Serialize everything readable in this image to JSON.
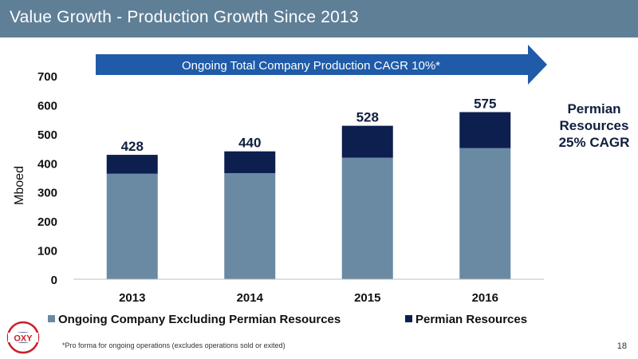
{
  "header": {
    "title": "Value Growth - Production Growth Since 2013"
  },
  "banner": {
    "text": "Ongoing Total Company Production CAGR 10%*"
  },
  "side_note": {
    "line1": "Permian",
    "line2": "Resources",
    "line3": "25% CAGR"
  },
  "footnote": "*Pro forma for ongoing operations (excludes operations sold or exited)",
  "page_number": "18",
  "logo": {
    "text": "OXY"
  },
  "colors": {
    "header": "#5f7f97",
    "ongoing": "#6a8aa3",
    "permian": "#0d1f4e",
    "banner": "#1f5ba8"
  },
  "chart_data": {
    "type": "bar",
    "stacked": true,
    "categories": [
      "2013",
      "2014",
      "2015",
      "2016"
    ],
    "series": [
      {
        "name": "Ongoing Company Excluding Permian Resources",
        "values": [
          363,
          365,
          418,
          451
        ],
        "color": "#6a8aa3"
      },
      {
        "name": "Permian Resources",
        "values": [
          65,
          75,
          110,
          124
        ],
        "color": "#0d1f4e"
      }
    ],
    "totals": [
      428,
      440,
      528,
      575
    ],
    "ylabel": "Mboed",
    "ylim": [
      0,
      700
    ],
    "yticks": [
      0,
      100,
      200,
      300,
      400,
      500,
      600,
      700
    ],
    "legend": "bottom",
    "grid": false
  }
}
